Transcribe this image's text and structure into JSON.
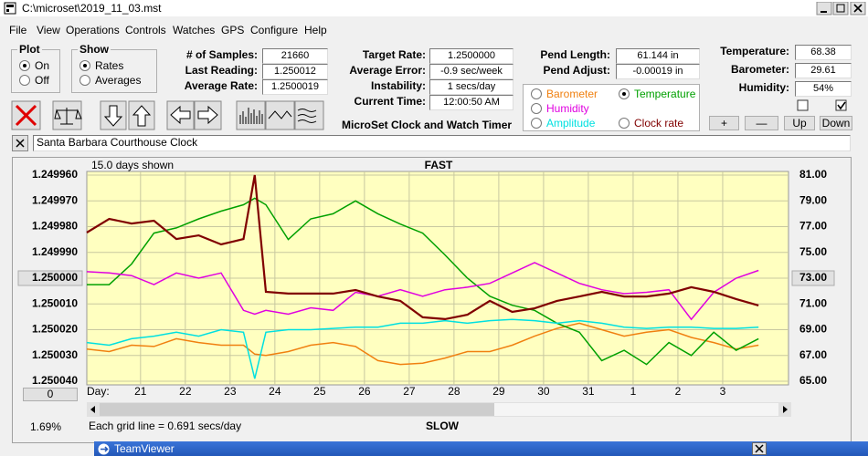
{
  "window": {
    "title": "C:\\microset\\2019_11_03.mst"
  },
  "menu": [
    "File",
    "View",
    "Operations",
    "Controls",
    "Watches",
    "GPS",
    "Configure",
    "Help"
  ],
  "plot_group": {
    "title": "Plot",
    "options": [
      "On",
      "Off"
    ],
    "selected": 0
  },
  "show_group": {
    "title": "Show",
    "options": [
      "Rates",
      "Averages"
    ],
    "selected": 0
  },
  "fields": [
    {
      "label": "# of Samples:",
      "value": "21660"
    },
    {
      "label": "Last Reading:",
      "value": "1.250012"
    },
    {
      "label": "Average Rate:",
      "value": "1.2500019"
    },
    {
      "label": "Target Rate:",
      "value": "1.2500000"
    },
    {
      "label": "Average Error:",
      "value": "-0.9 sec/week"
    },
    {
      "label": "Instability:",
      "value": "1 secs/day"
    },
    {
      "label": "Current Time:",
      "value": "12:00:50 AM"
    },
    {
      "label": "Pend Length:",
      "value": "61.144 in"
    },
    {
      "label": "Pend Adjust:",
      "value": "-0.00019 in"
    },
    {
      "label": "Temperature:",
      "value": "68.38"
    },
    {
      "label": "Barometer:",
      "value": "29.61"
    },
    {
      "label": "Humidity:",
      "value": "54%"
    }
  ],
  "app_title": "MicroSet Clock and Watch Timer",
  "buttons": [
    "+",
    "—",
    "Up",
    "Down"
  ],
  "clock_name": "Santa Barbara Courthouse Clock",
  "offset_button": "0",
  "percent": "1.69%",
  "taskbar": {
    "title": "TeamViewer"
  },
  "chart_data": {
    "type": "line",
    "subtitle": "15.0 days shown",
    "title": "FAST",
    "bottom_title": "SLOW",
    "note": "Each grid line = 0.691 secs/day",
    "x_label": "Day:",
    "grid": true,
    "selected_series": 1,
    "xlim": [
      0,
      15.67
    ],
    "xticks": [
      {
        "value": 1.2,
        "label": "21"
      },
      {
        "value": 2.2,
        "label": "22"
      },
      {
        "value": 3.2,
        "label": "23"
      },
      {
        "value": 4.2,
        "label": "24"
      },
      {
        "value": 5.2,
        "label": "25"
      },
      {
        "value": 6.2,
        "label": "26"
      },
      {
        "value": 7.2,
        "label": "27"
      },
      {
        "value": 8.2,
        "label": "28"
      },
      {
        "value": 9.2,
        "label": "29"
      },
      {
        "value": 10.2,
        "label": "30"
      },
      {
        "value": 11.2,
        "label": "31"
      },
      {
        "value": 12.2,
        "label": "1"
      },
      {
        "value": 13.2,
        "label": "2"
      },
      {
        "value": 14.2,
        "label": "3"
      }
    ],
    "ylim": [
      1.25004,
      1.24996
    ],
    "yticks": [
      {
        "value": 1.24996,
        "label": "1.249960"
      },
      {
        "value": 1.24997,
        "label": "1.249970"
      },
      {
        "value": 1.24998,
        "label": "1.249980"
      },
      {
        "value": 1.24999,
        "label": "1.249990"
      },
      {
        "value": 1.25,
        "label": "1.250000"
      },
      {
        "value": 1.25001,
        "label": "1.250010"
      },
      {
        "value": 1.25002,
        "label": "1.250020"
      },
      {
        "value": 1.25003,
        "label": "1.250030"
      },
      {
        "value": 1.25004,
        "label": "1.250040"
      }
    ],
    "y2lim": [
      65,
      81
    ],
    "y2ticks": [
      {
        "value": 81,
        "label": "81.00"
      },
      {
        "value": 79,
        "label": "79.00"
      },
      {
        "value": 77,
        "label": "77.00"
      },
      {
        "value": 75,
        "label": "75.00"
      },
      {
        "value": 73,
        "label": "73.00"
      },
      {
        "value": 71,
        "label": "71.00"
      },
      {
        "value": 69,
        "label": "69.00"
      },
      {
        "value": 67,
        "label": "67.00"
      },
      {
        "value": 65,
        "label": "65.00"
      }
    ],
    "x": [
      0,
      0.5,
      1,
      1.5,
      2,
      2.5,
      3,
      3.5,
      3.75,
      4,
      4.5,
      5,
      5.5,
      6,
      6.5,
      7,
      7.5,
      8,
      8.5,
      9,
      9.5,
      10,
      10.5,
      11,
      11.5,
      12,
      12.5,
      13,
      13.5,
      14,
      14.5,
      15
    ],
    "series": [
      {
        "name": "Barometer",
        "color": "#f08010",
        "axis": "y2",
        "values": [
          67.5,
          67.3,
          67.8,
          67.7,
          68.3,
          68.0,
          67.8,
          67.8,
          67.1,
          67.0,
          67.3,
          67.8,
          68.0,
          67.7,
          66.6,
          66.3,
          66.4,
          66.8,
          67.3,
          67.3,
          67.8,
          68.5,
          69.1,
          69.5,
          69.0,
          68.5,
          68.8,
          69.0,
          68.4,
          68.0,
          67.5,
          67.8
        ]
      },
      {
        "name": "Temperature",
        "color": "#00a000",
        "axis": "y2",
        "values": [
          72.5,
          72.5,
          74.1,
          76.5,
          76.9,
          77.6,
          78.2,
          78.7,
          79.2,
          78.7,
          76.0,
          77.6,
          78.0,
          79.0,
          78.0,
          77.2,
          76.5,
          74.8,
          73.0,
          71.6,
          70.9,
          70.5,
          69.5,
          68.8,
          66.6,
          67.4,
          66.3,
          68.0,
          67.0,
          68.8,
          67.4,
          68.3
        ]
      },
      {
        "name": "Humidity",
        "color": "#e000e0",
        "axis": "y2",
        "values": [
          73.5,
          73.4,
          73.2,
          72.5,
          73.4,
          73.0,
          73.4,
          70.5,
          70.2,
          70.5,
          70.2,
          70.7,
          70.5,
          71.9,
          71.6,
          72.1,
          71.6,
          72.1,
          72.3,
          72.6,
          73.4,
          74.2,
          73.4,
          72.6,
          72.1,
          71.8,
          71.9,
          72.1,
          69.8,
          71.9,
          73.0,
          73.6
        ]
      },
      {
        "name": "Amplitude",
        "color": "#00e0e0",
        "axis": "y2",
        "values": [
          68.0,
          67.8,
          68.3,
          68.5,
          68.8,
          68.5,
          69.0,
          68.8,
          65.2,
          68.8,
          69.0,
          69.0,
          69.1,
          69.2,
          69.2,
          69.5,
          69.5,
          69.7,
          69.5,
          69.7,
          69.8,
          69.7,
          69.5,
          69.7,
          69.5,
          69.2,
          69.1,
          69.2,
          69.2,
          69.1,
          69.1,
          69.2
        ]
      },
      {
        "name": "Clock rate",
        "color": "#800000",
        "values": [
          1.2499823,
          1.249977,
          1.2499788,
          1.2499777,
          1.2499848,
          1.2499834,
          1.2499869,
          1.2499848,
          1.24996,
          1.2500053,
          1.250006,
          1.250006,
          1.250006,
          1.2500046,
          1.2500071,
          1.2500088,
          1.2500152,
          1.2500159,
          1.2500142,
          1.2500088,
          1.2500131,
          1.2500117,
          1.2500088,
          1.2500071,
          1.2500053,
          1.2500071,
          1.2500071,
          1.250006,
          1.2500035,
          1.2500053,
          1.2500081,
          1.2500106
        ]
      }
    ]
  }
}
